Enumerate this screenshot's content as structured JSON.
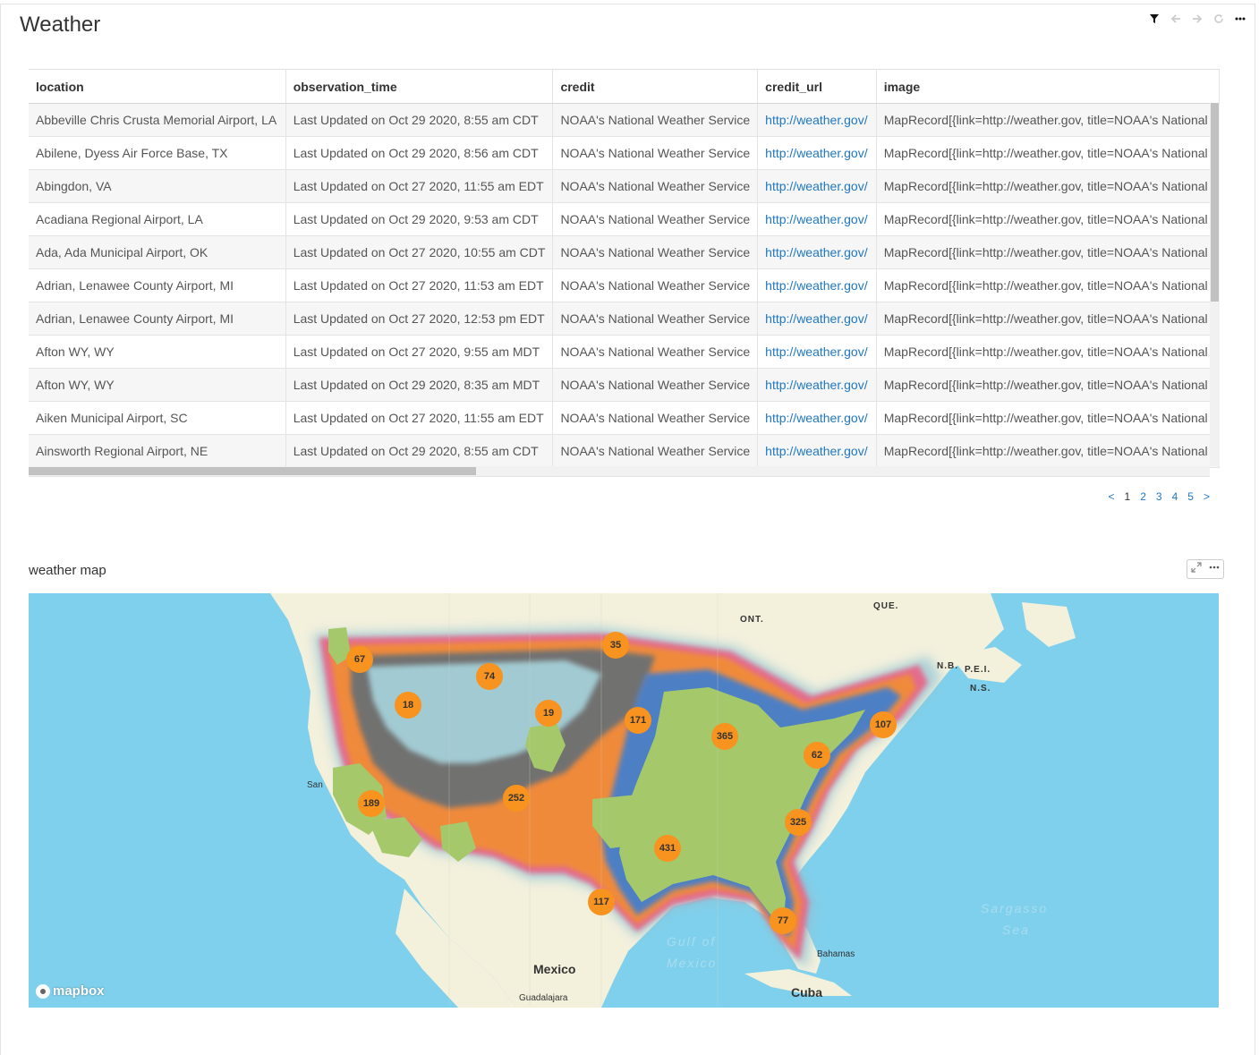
{
  "page": {
    "title": "Weather"
  },
  "toolbar": {
    "icons": [
      "filter-icon",
      "arrow-left-icon",
      "arrow-right-icon",
      "refresh-icon",
      "more-icon"
    ]
  },
  "table": {
    "columns": [
      "location",
      "observation_time",
      "credit",
      "credit_url",
      "image"
    ],
    "rows": [
      [
        "Abbeville Chris Crusta Memorial Airport, LA",
        "Last Updated on Oct 29 2020, 8:55 am CDT",
        "NOAA's National Weather Service",
        "http://weather.gov/",
        "MapRecord[{link=http://weather.gov, title=NOAA's National"
      ],
      [
        "Abilene, Dyess Air Force Base, TX",
        "Last Updated on Oct 29 2020, 8:56 am CDT",
        "NOAA's National Weather Service",
        "http://weather.gov/",
        "MapRecord[{link=http://weather.gov, title=NOAA's National"
      ],
      [
        "Abingdon, VA",
        "Last Updated on Oct 27 2020, 11:55 am EDT",
        "NOAA's National Weather Service",
        "http://weather.gov/",
        "MapRecord[{link=http://weather.gov, title=NOAA's National"
      ],
      [
        "Acadiana Regional Airport, LA",
        "Last Updated on Oct 29 2020, 9:53 am CDT",
        "NOAA's National Weather Service",
        "http://weather.gov/",
        "MapRecord[{link=http://weather.gov, title=NOAA's National"
      ],
      [
        "Ada, Ada Municipal Airport, OK",
        "Last Updated on Oct 27 2020, 10:55 am CDT",
        "NOAA's National Weather Service",
        "http://weather.gov/",
        "MapRecord[{link=http://weather.gov, title=NOAA's National"
      ],
      [
        "Adrian, Lenawee County Airport, MI",
        "Last Updated on Oct 27 2020, 11:53 am EDT",
        "NOAA's National Weather Service",
        "http://weather.gov/",
        "MapRecord[{link=http://weather.gov, title=NOAA's National"
      ],
      [
        "Adrian, Lenawee County Airport, MI",
        "Last Updated on Oct 27 2020, 12:53 pm EDT",
        "NOAA's National Weather Service",
        "http://weather.gov/",
        "MapRecord[{link=http://weather.gov, title=NOAA's National"
      ],
      [
        "Afton WY, WY",
        "Last Updated on Oct 27 2020, 9:55 am MDT",
        "NOAA's National Weather Service",
        "http://weather.gov/",
        "MapRecord[{link=http://weather.gov, title=NOAA's National"
      ],
      [
        "Afton WY, WY",
        "Last Updated on Oct 29 2020, 8:35 am MDT",
        "NOAA's National Weather Service",
        "http://weather.gov/",
        "MapRecord[{link=http://weather.gov, title=NOAA's National"
      ],
      [
        "Aiken Municipal Airport, SC",
        "Last Updated on Oct 27 2020, 11:55 am EDT",
        "NOAA's National Weather Service",
        "http://weather.gov/",
        "MapRecord[{link=http://weather.gov, title=NOAA's National"
      ],
      [
        "Ainsworth Regional Airport, NE",
        "Last Updated on Oct 29 2020, 8:55 am CDT",
        "NOAA's National Weather Service",
        "http://weather.gov/",
        "MapRecord[{link=http://weather.gov, title=NOAA's National"
      ]
    ]
  },
  "pagination": {
    "prev": "<",
    "pages": [
      "1",
      "2",
      "3",
      "4",
      "5"
    ],
    "current": "1",
    "next": ">"
  },
  "map": {
    "title": "weather map",
    "labels": {
      "que": "QUE.",
      "ont": "ONT.",
      "nb": "N.B.",
      "pei": "P.E.I.",
      "ns": "N.S.",
      "mexico": "Mexico",
      "guadalajara": "Guadalajara",
      "cuba": "Cuba",
      "bahamas": "Bahamas",
      "gulf1": "Gulf of",
      "gulf2": "Mexico",
      "sargasso1": "Sargasso",
      "sargasso2": "Sea",
      "san": "San"
    },
    "clusters": [
      {
        "label": "67"
      },
      {
        "label": "35"
      },
      {
        "label": "74"
      },
      {
        "label": "18"
      },
      {
        "label": "19"
      },
      {
        "label": "171"
      },
      {
        "label": "365"
      },
      {
        "label": "107"
      },
      {
        "label": "62"
      },
      {
        "label": "189"
      },
      {
        "label": "252"
      },
      {
        "label": "325"
      },
      {
        "label": "431"
      },
      {
        "label": "117"
      },
      {
        "label": "77"
      }
    ],
    "attribution": "mapbox",
    "colors": {
      "water": "#7fd0ec",
      "land": "#f3f0dc",
      "cluster": "#f7931e",
      "heat_green": "#a5c86a",
      "heat_orange": "#f08a3a",
      "heat_pink": "#e36c8c",
      "heat_blue": "#4d7fc4",
      "heat_gray": "#5c6d7a"
    }
  }
}
